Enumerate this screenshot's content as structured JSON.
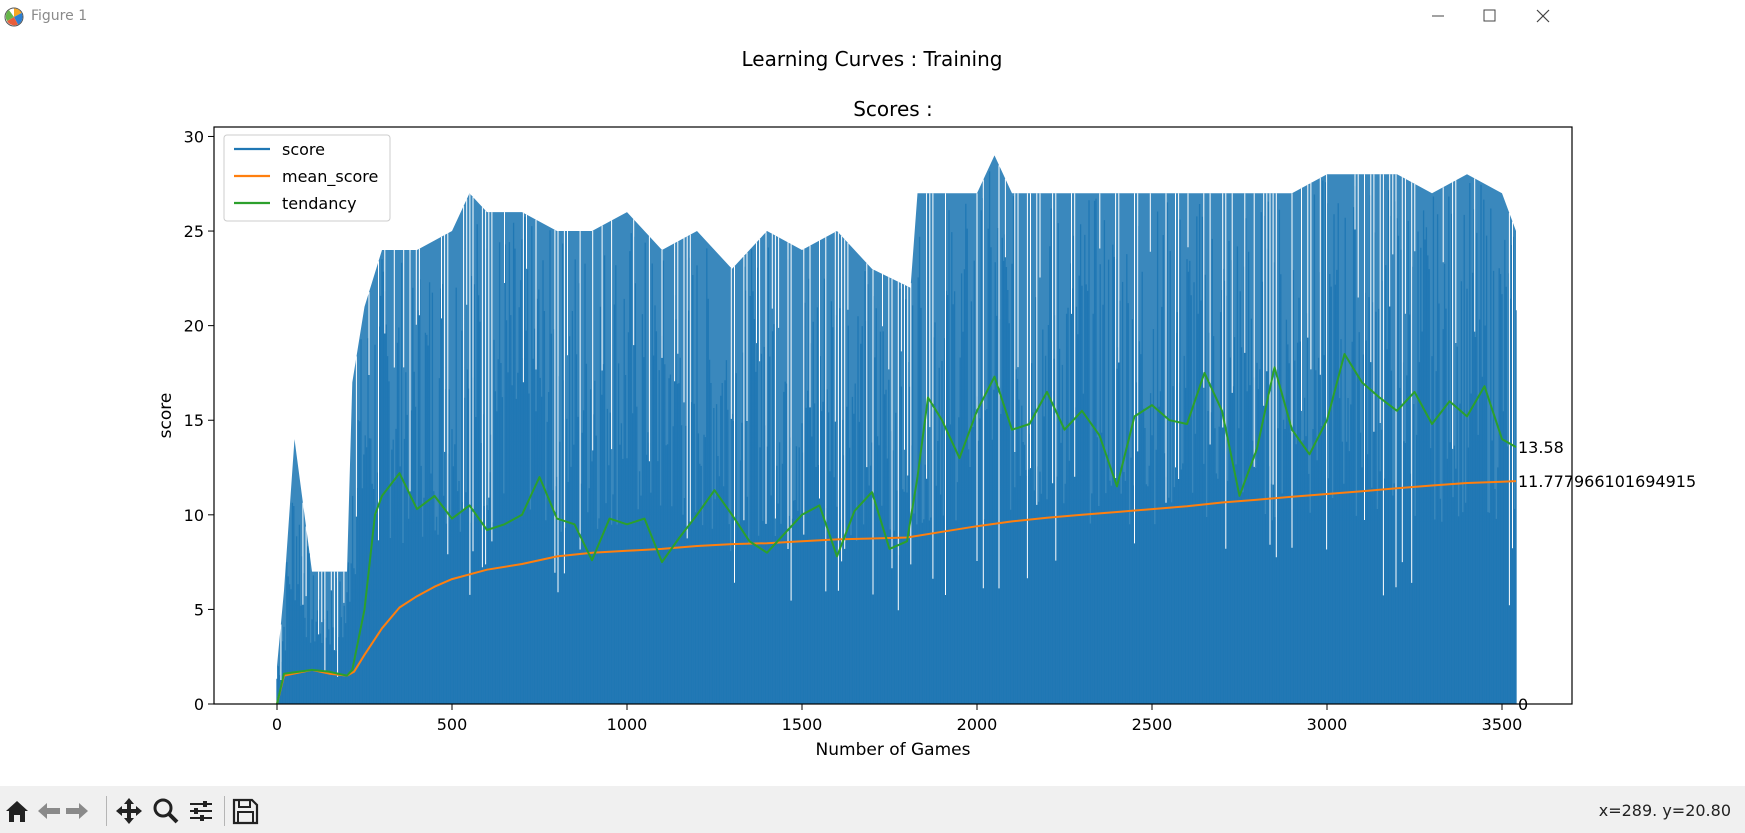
{
  "window": {
    "title": "Figure 1",
    "buttons": [
      "minimize",
      "maximize",
      "close"
    ]
  },
  "figure": {
    "suptitle": "Learning Curves : Training"
  },
  "chart_data": {
    "type": "line",
    "title": "Scores :",
    "xlabel": "Number of Games",
    "ylabel": "score",
    "xlim": [
      -180,
      3700
    ],
    "ylim": [
      0,
      30.5
    ],
    "xticks": [
      0,
      500,
      1000,
      1500,
      2000,
      2500,
      3000,
      3500
    ],
    "yticks": [
      0,
      5,
      10,
      15,
      20,
      25,
      30
    ],
    "grid": false,
    "legend_position": "upper left",
    "series": [
      {
        "name": "score",
        "color": "#1f77b4",
        "style": "noisy per-game scores ranging 0 to 29; approximate envelope shown",
        "x": [
          0,
          20,
          50,
          100,
          150,
          200,
          215,
          250,
          300,
          400,
          500,
          550,
          600,
          700,
          800,
          900,
          1000,
          1100,
          1200,
          1300,
          1400,
          1500,
          1600,
          1700,
          1810,
          1830,
          1900,
          2000,
          2050,
          2100,
          2200,
          2300,
          2400,
          2500,
          2600,
          2700,
          2800,
          2900,
          3000,
          3100,
          3200,
          3300,
          3400,
          3500,
          3540
        ],
        "upper": [
          2,
          6,
          14,
          7,
          7,
          7,
          17,
          21,
          24,
          24,
          25,
          27,
          26,
          26,
          25,
          25,
          26,
          24,
          25,
          23,
          25,
          24,
          25,
          23,
          22,
          27,
          27,
          27,
          29,
          27,
          27,
          27,
          27,
          27,
          27,
          27,
          27,
          27,
          28,
          28,
          28,
          27,
          28,
          27,
          25
        ],
        "lower": [
          0,
          0,
          0,
          0,
          0,
          0,
          0,
          0,
          0,
          0,
          0,
          0,
          0,
          0,
          0,
          0,
          0,
          0,
          0,
          0,
          0,
          0,
          0,
          0,
          0,
          0,
          0,
          0,
          0,
          0,
          0,
          0,
          0,
          0,
          0,
          0,
          0,
          0,
          0,
          0,
          0,
          0,
          0,
          0,
          0
        ],
        "last_value": 0
      },
      {
        "name": "mean_score",
        "color": "#ff7f0e",
        "x": [
          0,
          20,
          100,
          150,
          200,
          220,
          250,
          300,
          350,
          400,
          450,
          500,
          600,
          700,
          800,
          900,
          1000,
          1100,
          1200,
          1300,
          1400,
          1500,
          1600,
          1700,
          1800,
          1900,
          2000,
          2100,
          2200,
          2300,
          2400,
          2500,
          2600,
          2700,
          2800,
          2900,
          3000,
          3100,
          3200,
          3300,
          3400,
          3500,
          3540
        ],
        "y": [
          0,
          1.5,
          1.8,
          1.6,
          1.5,
          1.7,
          2.6,
          4.0,
          5.1,
          5.7,
          6.2,
          6.6,
          7.1,
          7.4,
          7.8,
          8.0,
          8.1,
          8.2,
          8.35,
          8.45,
          8.5,
          8.6,
          8.7,
          8.75,
          8.8,
          9.1,
          9.4,
          9.65,
          9.85,
          10.0,
          10.15,
          10.3,
          10.45,
          10.65,
          10.8,
          10.95,
          11.1,
          11.25,
          11.4,
          11.55,
          11.68,
          11.75,
          11.78
        ],
        "last_value": "11.777966101694915"
      },
      {
        "name": "tendancy",
        "color": "#2ca02c",
        "x": [
          0,
          20,
          100,
          150,
          200,
          215,
          250,
          280,
          300,
          350,
          400,
          450,
          500,
          550,
          600,
          650,
          700,
          750,
          800,
          850,
          900,
          950,
          1000,
          1050,
          1100,
          1150,
          1200,
          1250,
          1300,
          1350,
          1400,
          1450,
          1500,
          1550,
          1600,
          1650,
          1700,
          1750,
          1800,
          1830,
          1860,
          1900,
          1950,
          2000,
          2050,
          2100,
          2150,
          2200,
          2250,
          2300,
          2350,
          2400,
          2450,
          2500,
          2550,
          2600,
          2650,
          2700,
          2750,
          2800,
          2850,
          2900,
          2950,
          3000,
          3050,
          3100,
          3150,
          3200,
          3250,
          3300,
          3350,
          3400,
          3450,
          3500,
          3540
        ],
        "y": [
          0,
          1.6,
          1.8,
          1.7,
          1.5,
          1.8,
          5.0,
          10.0,
          11.0,
          12.2,
          10.3,
          11.0,
          9.8,
          10.5,
          9.2,
          9.5,
          10.0,
          12.0,
          9.8,
          9.5,
          7.6,
          9.8,
          9.5,
          9.8,
          7.5,
          8.8,
          10.0,
          11.3,
          10.0,
          8.6,
          8.0,
          9.0,
          10.0,
          10.5,
          7.8,
          10.2,
          11.2,
          8.2,
          8.6,
          12.0,
          16.2,
          15.0,
          13.0,
          15.5,
          17.3,
          14.5,
          14.8,
          16.5,
          14.5,
          15.5,
          14.2,
          11.5,
          15.2,
          15.8,
          15.0,
          14.8,
          17.5,
          15.5,
          11.0,
          13.5,
          17.8,
          14.5,
          13.2,
          15.0,
          18.5,
          17.0,
          16.2,
          15.5,
          16.5,
          14.8,
          16.0,
          15.2,
          16.8,
          14.0,
          13.58
        ],
        "last_value": "13.58"
      }
    ],
    "annotations": [
      "13.58",
      "11.777966101694915",
      "0"
    ]
  },
  "toolbar": {
    "icons": [
      "home-icon",
      "back-icon",
      "forward-icon",
      "pan-icon",
      "zoom-icon",
      "configure-subplots-icon",
      "save-icon"
    ],
    "coords": "x=289. y=20.80"
  }
}
